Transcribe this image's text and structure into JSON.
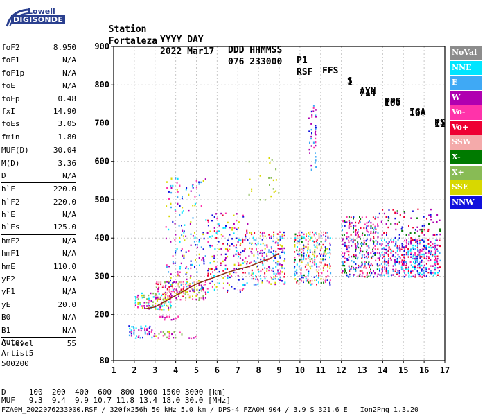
{
  "logo": {
    "line1": "Lowell",
    "line2": "DIGISONDE"
  },
  "header": {
    "line1": [
      "Station",
      "YYYY DAY",
      "DDD HHMMSS",
      "P1",
      "FFS",
      "S",
      "AXN",
      "PPS",
      "IGA",
      "PS"
    ],
    "line2": [
      "Fortaleza",
      "2022 Mar17",
      "076 233000",
      "RSF",
      "1",
      "714",
      "100",
      "10+",
      "11"
    ]
  },
  "params_groups": [
    [
      {
        "k": "foF2",
        "v": "8.950"
      },
      {
        "k": "foF1",
        "v": "N/A"
      },
      {
        "k": "foF1p",
        "v": "N/A"
      },
      {
        "k": "foE",
        "v": "N/A"
      },
      {
        "k": "foEp",
        "v": "0.48"
      },
      {
        "k": "fxI",
        "v": "14.90"
      },
      {
        "k": "foEs",
        "v": "3.05"
      },
      {
        "k": "fmin",
        "v": "1.80"
      }
    ],
    [
      {
        "k": "MUF(D)",
        "v": "30.04"
      },
      {
        "k": "M(D)",
        "v": "3.36"
      },
      {
        "k": "D",
        "v": "N/A"
      }
    ],
    [
      {
        "k": "h`F",
        "v": "220.0"
      },
      {
        "k": "h`F2",
        "v": "220.0"
      },
      {
        "k": "h`E",
        "v": "N/A"
      },
      {
        "k": "h`Es",
        "v": "125.0"
      }
    ],
    [
      {
        "k": "hmF2",
        "v": "N/A"
      },
      {
        "k": "hmF1",
        "v": "N/A"
      },
      {
        "k": "hmE",
        "v": "110.0"
      },
      {
        "k": "yF2",
        "v": "N/A"
      },
      {
        "k": "yF1",
        "v": "N/A"
      },
      {
        "k": "yE",
        "v": "20.0"
      },
      {
        "k": "B0",
        "v": "N/A"
      },
      {
        "k": "B1",
        "v": "N/A"
      }
    ],
    [
      {
        "k": "C-level",
        "v": "55"
      }
    ]
  ],
  "auto": {
    "l1": "Auto:",
    "l2": "Artist5",
    "l3": "500200"
  },
  "legend": [
    {
      "label": "NoVal",
      "color": "#8c8c8c"
    },
    {
      "label": "NNE",
      "color": "#00e5ff"
    },
    {
      "label": "E",
      "color": "#3fa9f5"
    },
    {
      "label": "W",
      "color": "#b000b0"
    },
    {
      "label": "Vo-",
      "color": "#ff33aa"
    },
    {
      "label": "Vo+",
      "color": "#ee0033"
    },
    {
      "label": "SSW",
      "color": "#f4aaaa"
    },
    {
      "label": "X-",
      "color": "#007a00"
    },
    {
      "label": "X+",
      "color": "#88bb55"
    },
    {
      "label": "SSE",
      "color": "#d8d800"
    },
    {
      "label": "NNW",
      "color": "#1010dd"
    }
  ],
  "bottom": {
    "d_line": "D     100  200  400  600  800 1000 1500 3000 [km]",
    "muf_line": "MUF   9.3  9.4  9.9 10.7 11.8 13.4 18.0 30.0 [MHz]",
    "file_line": "FZA0M_2022076233000.RSF / 320fx256h 50 kHz 5.0 km / DPS-4 FZA0M 904 / 3.9 S 321.6 E   Ion2Png 1.3.20"
  },
  "chart_data": {
    "type": "scatter",
    "xlim": [
      1,
      17
    ],
    "ylim": [
      80,
      900
    ],
    "x_ticks": [
      1,
      2,
      3,
      4,
      5,
      6,
      7,
      8,
      9,
      10,
      11,
      12,
      13,
      14,
      15,
      16,
      17
    ],
    "y_ticks": [
      80,
      200,
      300,
      400,
      500,
      600,
      700,
      800,
      900
    ],
    "xlabel": "",
    "ylabel": "",
    "grid": true,
    "legend_position": "right",
    "regions": [
      {
        "f": [
          1.7,
          2.9
        ],
        "h": [
          140,
          175
        ],
        "colors": [
          "#ff33aa",
          "#b000b0",
          "#00e5ff",
          "#3fa9f5",
          "#1010dd"
        ],
        "density": 0.55
      },
      {
        "f": [
          2.9,
          5.0
        ],
        "h": [
          140,
          160
        ],
        "colors": [
          "#ff33aa",
          "#d8d800",
          "#b000b0",
          "#88bb55"
        ],
        "density": 0.35
      },
      {
        "f": [
          3.2,
          4.3
        ],
        "h": [
          188,
          200
        ],
        "colors": [
          "#b000b0",
          "#ff33aa"
        ],
        "density": 0.35
      },
      {
        "f": [
          2.0,
          3.8
        ],
        "h": [
          215,
          260
        ],
        "colors": [
          "#d8d800",
          "#ff33aa",
          "#00e5ff",
          "#b000b0",
          "#88bb55"
        ],
        "density": 0.45
      },
      {
        "f": [
          3.0,
          5.5
        ],
        "h": [
          240,
          290
        ],
        "colors": [
          "#d8d800",
          "#ff33aa",
          "#b000b0",
          "#ee0033",
          "#88bb55",
          "#f4aaaa"
        ],
        "density": 0.55
      },
      {
        "f": [
          3.5,
          5.5
        ],
        "h": [
          260,
          560
        ],
        "colors": [
          "#d8d800",
          "#ff33aa",
          "#b000b0",
          "#3fa9f5",
          "#00e5ff",
          "#1010dd"
        ],
        "density": 0.12
      },
      {
        "f": [
          5.5,
          7.5
        ],
        "h": [
          260,
          470
        ],
        "colors": [
          "#d8d800",
          "#ff33aa",
          "#ee0033",
          "#b000b0",
          "#1010dd",
          "#00e5ff"
        ],
        "density": 0.2
      },
      {
        "f": [
          7.5,
          9.3
        ],
        "h": [
          280,
          420
        ],
        "colors": [
          "#d8d800",
          "#ff33aa",
          "#ee0033",
          "#b000b0",
          "#1010dd",
          "#00e5ff",
          "#3fa9f5"
        ],
        "density": 0.35
      },
      {
        "f": [
          7.5,
          9.0
        ],
        "h": [
          500,
          620
        ],
        "colors": [
          "#d8d800",
          "#88bb55"
        ],
        "density": 0.06
      },
      {
        "f": [
          9.7,
          11.5
        ],
        "h": [
          280,
          420
        ],
        "colors": [
          "#d8d800",
          "#ff33aa",
          "#ee0033",
          "#f4aaaa",
          "#3fa9f5",
          "#00e5ff",
          "#1010dd",
          "#007a00"
        ],
        "density": 0.45
      },
      {
        "f": [
          10.4,
          10.8
        ],
        "h": [
          580,
          750
        ],
        "colors": [
          "#ff33aa",
          "#1010dd",
          "#b000b0",
          "#3fa9f5"
        ],
        "density": 0.3
      },
      {
        "f": [
          12.0,
          13.8
        ],
        "h": [
          300,
          460
        ],
        "colors": [
          "#ee0033",
          "#ff33aa",
          "#3fa9f5",
          "#1010dd",
          "#b000b0",
          "#007a00"
        ],
        "density": 0.45
      },
      {
        "f": [
          13.8,
          16.8
        ],
        "h": [
          300,
          400
        ],
        "colors": [
          "#1010dd",
          "#3fa9f5",
          "#ff33aa",
          "#b000b0",
          "#00e5ff",
          "#ee0033"
        ],
        "density": 0.55
      },
      {
        "f": [
          13.8,
          16.8
        ],
        "h": [
          400,
          480
        ],
        "colors": [
          "#1010dd",
          "#ee0033",
          "#b000b0",
          "#007a00"
        ],
        "density": 0.15
      }
    ],
    "trace": [
      [
        2.5,
        215
      ],
      [
        3.0,
        220
      ],
      [
        3.5,
        235
      ],
      [
        4.0,
        250
      ],
      [
        4.5,
        265
      ],
      [
        5.0,
        280
      ],
      [
        5.5,
        290
      ],
      [
        6.0,
        300
      ],
      [
        6.5,
        310
      ],
      [
        7.0,
        318
      ],
      [
        7.5,
        325
      ],
      [
        8.0,
        335
      ],
      [
        8.5,
        345
      ],
      [
        9.0,
        360
      ]
    ]
  }
}
